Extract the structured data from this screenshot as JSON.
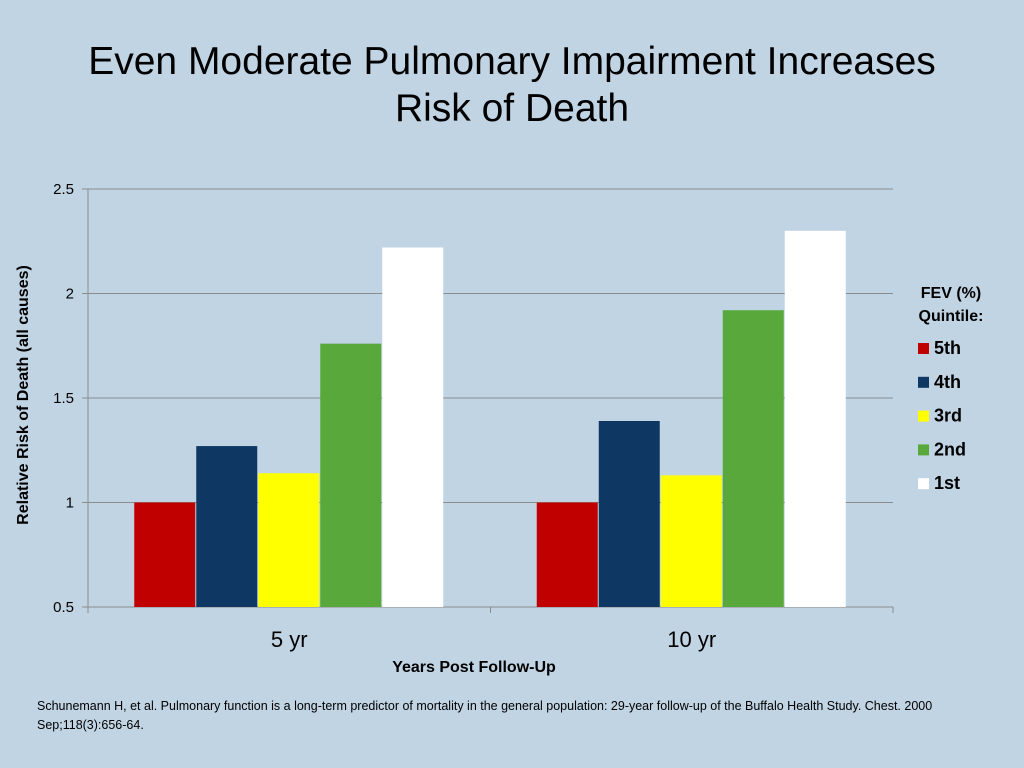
{
  "title_lines": [
    "Even Moderate Pulmonary Impairment Increases",
    "Risk of Death"
  ],
  "citation": "Schunemann H, et al.  Pulmonary function is a long-term predictor of mortality in the general population: 29-year follow-up of the Buffalo Health Study. Chest. 2000 Sep;118(3):656-64.",
  "legend": {
    "title_lines": [
      "FEV (%)",
      "Quintile:"
    ],
    "placement": "right"
  },
  "colors": {
    "background": "#c1d4e4",
    "5th": "#c00000",
    "4th": "#0e3764",
    "3rd": "#ffff00",
    "2nd": "#58a83c",
    "1st": "#ffffff"
  },
  "chart_data": {
    "type": "bar",
    "title": "Even Moderate Pulmonary Impairment Increases Risk of Death",
    "xlabel": "Years Post Follow-Up",
    "ylabel": "Relative Risk of Death (all causes)",
    "categories": [
      "5 yr",
      "10 yr"
    ],
    "ylim": [
      0.5,
      2.5
    ],
    "yticks": [
      0.5,
      1,
      1.5,
      2,
      2.5
    ],
    "ytick_labels": [
      "0.5",
      "1",
      "1.5",
      "2",
      "2.5"
    ],
    "grid": true,
    "series": [
      {
        "name": "5th",
        "color": "#c00000",
        "values": [
          1.0,
          1.0
        ]
      },
      {
        "name": "4th",
        "color": "#0e3764",
        "values": [
          1.27,
          1.39
        ]
      },
      {
        "name": "3rd",
        "color": "#ffff00",
        "values": [
          1.14,
          1.13
        ]
      },
      {
        "name": "2nd",
        "color": "#58a83c",
        "values": [
          1.76,
          1.92
        ]
      },
      {
        "name": "1st",
        "color": "#ffffff",
        "values": [
          2.22,
          2.3
        ]
      }
    ]
  }
}
